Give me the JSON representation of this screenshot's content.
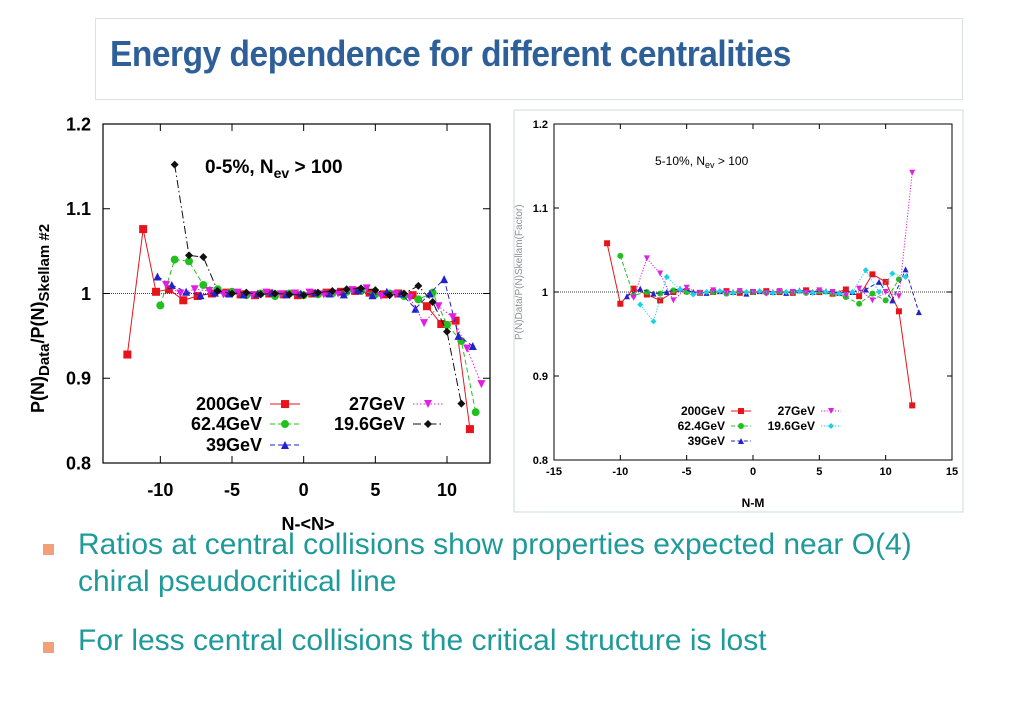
{
  "page": {
    "title": "Energy dependence for different centralities",
    "bullets": [
      "Ratios at central collisions show properties expected near O(4) chiral pseudocritical line",
      " For less central collisions the critical structure is lost"
    ],
    "bullet_color": "#f3a07a",
    "title_color": "#2e5f98",
    "text_color": "#1f9a9a"
  },
  "chart_data": [
    {
      "type": "line",
      "annotation": "0-5%, N_ev > 100",
      "xlabel": "N-<N>",
      "ylabel": "P(N)_Data/P(N)_Skellam #2",
      "xlim": [
        -14,
        13
      ],
      "ylim": [
        0.8,
        1.2
      ],
      "xticks": [
        -10,
        -5,
        0,
        5,
        10
      ],
      "yticks": [
        0.8,
        0.9,
        1,
        1.1,
        1.2
      ],
      "ytick_labels": [
        "0.8",
        "0.9",
        "1",
        "1.1",
        "1.2"
      ],
      "reference_line": 1.0,
      "legend_position": "bottom-center",
      "series": [
        {
          "name": "200GeV",
          "color": "#e8141c",
          "marker": "square",
          "dash": "solid",
          "x": [
            -12.3,
            -11.2,
            -10.3,
            -9.4,
            -8.4,
            -7.4,
            -6.4,
            -5.4,
            -4.4,
            -3.4,
            -2.4,
            -1.4,
            -0.4,
            0.6,
            1.6,
            2.6,
            3.6,
            4.6,
            5.6,
            6.6,
            7.6,
            8.6,
            9.6,
            10.6,
            11.6
          ],
          "y": [
            0.928,
            1.076,
            1.002,
            1.005,
            0.992,
            0.997,
            1.0,
            1.001,
            0.999,
            0.998,
            1.0,
            0.999,
            0.998,
            1.0,
            1.001,
            1.002,
            1.003,
            1.001,
            0.999,
            1.0,
            0.998,
            0.985,
            0.964,
            0.968,
            0.84
          ]
        },
        {
          "name": "62.4GeV",
          "color": "#22c01e",
          "marker": "circle",
          "dash": "dashed",
          "x": [
            -10.0,
            -9.0,
            -8.0,
            -7.0,
            -6.0,
            -5.0,
            -4.0,
            -3.0,
            -2.0,
            -1.0,
            0.0,
            1.0,
            2.0,
            3.0,
            4.0,
            5.0,
            6.0,
            7.0,
            8.0,
            9.0,
            10.0,
            11.0,
            12.0
          ],
          "y": [
            0.986,
            1.04,
            1.038,
            1.01,
            1.005,
            1.002,
            0.998,
            1.0,
            0.997,
            1.0,
            0.998,
            0.999,
            1.0,
            1.002,
            1.003,
            0.999,
            1.0,
            0.997,
            0.993,
            1.001,
            0.963,
            0.944,
            0.86
          ]
        },
        {
          "name": "39GeV",
          "color": "#2222cc",
          "marker": "triangle",
          "dash": "dashed",
          "x": [
            -10.2,
            -9.2,
            -8.2,
            -7.2,
            -6.2,
            -5.2,
            -4.2,
            -3.2,
            -2.2,
            -1.2,
            -0.2,
            0.8,
            1.8,
            2.8,
            3.8,
            4.8,
            5.8,
            6.8,
            7.8,
            8.8,
            9.8,
            10.8,
            11.8
          ],
          "y": [
            1.02,
            1.01,
            1.002,
            0.998,
            1.001,
            1.0,
            0.999,
            1.0,
            1.001,
            0.999,
            1.0,
            1.001,
            1.0,
            0.999,
            1.004,
            0.998,
            1.002,
            1.0,
            0.982,
            1.0,
            1.017,
            0.95,
            0.938
          ]
        },
        {
          "name": "27GeV",
          "color": "#e31ee3",
          "marker": "triangle-down",
          "dash": "dotted",
          "x": [
            -9.6,
            -8.6,
            -7.6,
            -6.6,
            -5.6,
            -4.6,
            -3.6,
            -2.6,
            -1.6,
            -0.6,
            0.4,
            1.4,
            2.4,
            3.4,
            4.4,
            5.4,
            6.4,
            7.4,
            8.4,
            9.4,
            10.4,
            11.4,
            12.4
          ],
          "y": [
            1.01,
            1.0,
            1.005,
            1.003,
            0.999,
            1.001,
            0.998,
            1.001,
            0.999,
            1.0,
            1.001,
            0.999,
            1.0,
            1.004,
            1.006,
            0.997,
            0.999,
            0.995,
            0.965,
            0.985,
            0.972,
            0.935,
            0.893
          ]
        },
        {
          "name": "19.6GeV",
          "color": "#111111",
          "marker": "diamond",
          "dash": "dashdot",
          "x": [
            -9.0,
            -8.0,
            -7.0,
            -6.0,
            -5.0,
            -4.0,
            -3.0,
            -2.0,
            -1.0,
            0.0,
            1.0,
            2.0,
            3.0,
            4.0,
            5.0,
            6.0,
            7.0,
            8.0,
            9.0,
            10.0,
            11.0
          ],
          "x_extra": [],
          "y": [
            1.152,
            1.045,
            1.043,
            1.003,
            1.0,
            1.001,
            0.999,
            1.0,
            0.999,
            0.998,
            1.001,
            1.003,
            1.005,
            1.006,
            1.004,
            0.998,
            1.0,
            1.009,
            0.99,
            0.955,
            0.87
          ]
        }
      ]
    },
    {
      "type": "line",
      "annotation": "5-10%, N_ev > 100",
      "xlabel": "N-M",
      "ylabel": "",
      "xlim": [
        -15,
        15
      ],
      "ylim": [
        0.8,
        1.2
      ],
      "xticks": [
        -15,
        -10,
        -5,
        0,
        5,
        10,
        15
      ],
      "yticks": [
        0.8,
        0.9,
        1,
        1.1,
        1.2
      ],
      "ytick_labels": [
        "0.8",
        "0.9",
        "1",
        "1.1",
        "1.2"
      ],
      "reference_line": 1.0,
      "legend_position": "bottom-center",
      "series": [
        {
          "name": "200GeV",
          "color": "#e8141c",
          "marker": "square",
          "dash": "solid",
          "x": [
            -11.0,
            -10.0,
            -9.0,
            -8.0,
            -7.0,
            -6.0,
            -5.0,
            -4.0,
            -3.0,
            -2.0,
            -1.0,
            0.0,
            1.0,
            2.0,
            3.0,
            4.0,
            5.0,
            6.0,
            7.0,
            8.0,
            9.0,
            10.0,
            11.0,
            12.0
          ],
          "y": [
            1.058,
            0.986,
            1.004,
            0.997,
            0.99,
            1.0,
            1.001,
            0.999,
            1.0,
            1.001,
            0.999,
            1.0,
            1.001,
            1.0,
            0.999,
            1.002,
            1.0,
            0.998,
            1.003,
            0.995,
            1.021,
            1.012,
            0.977,
            0.865
          ]
        },
        {
          "name": "62.4GeV",
          "color": "#22c01e",
          "marker": "circle",
          "dash": "dashed",
          "x": [
            -10.0,
            -9.0,
            -8.0,
            -7.0,
            -6.0,
            -5.0,
            -4.0,
            -3.0,
            -2.0,
            -1.0,
            0.0,
            1.0,
            2.0,
            3.0,
            4.0,
            5.0,
            6.0,
            7.0,
            8.0,
            9.0,
            10.0,
            11.0
          ],
          "y": [
            1.043,
            0.996,
            1.0,
            0.998,
            1.002,
            1.0,
            0.999,
            1.0,
            0.998,
            1.001,
            1.0,
            0.999,
            1.001,
            1.0,
            0.999,
            1.001,
            0.999,
            0.994,
            0.986,
            0.998,
            0.99,
            1.015
          ]
        },
        {
          "name": "39GeV",
          "color": "#2222cc",
          "marker": "triangle",
          "dash": "dashed",
          "x": [
            -9.5,
            -8.5,
            -7.5,
            -6.5,
            -5.5,
            -4.5,
            -3.5,
            -2.5,
            -1.5,
            -0.5,
            0.5,
            1.5,
            2.5,
            3.5,
            4.5,
            5.5,
            6.5,
            7.5,
            8.5,
            9.5,
            10.5,
            11.5,
            12.5
          ],
          "y": [
            0.995,
            1.004,
            0.998,
            1.0,
            1.004,
            1.0,
            0.999,
            1.001,
            1.0,
            0.998,
            1.001,
            1.0,
            0.999,
            1.002,
            1.0,
            1.001,
            0.999,
            1.0,
            1.003,
            1.012,
            0.99,
            1.027,
            0.976
          ]
        },
        {
          "name": "27GeV",
          "color": "#e31ee3",
          "marker": "triangle-down",
          "dash": "dotted",
          "x": [
            -9.0,
            -8.0,
            -7.0,
            -6.0,
            -5.0,
            -4.0,
            -3.0,
            -2.0,
            -1.0,
            0.0,
            1.0,
            2.0,
            3.0,
            4.0,
            5.0,
            6.0,
            7.0,
            8.0,
            9.0,
            10.0,
            11.0,
            12.0
          ],
          "y": [
            0.993,
            1.04,
            1.022,
            0.99,
            1.005,
            0.998,
            1.002,
            0.999,
            1.001,
            1.0,
            0.998,
            1.001,
            1.0,
            0.999,
            1.002,
            1.0,
            0.996,
            1.004,
            0.99,
            1.0,
            0.995,
            1.142
          ]
        },
        {
          "name": "19.6GeV",
          "color": "#19d3e0",
          "marker": "diamond",
          "dash": "dotted",
          "x": [
            -8.5,
            -7.5,
            -6.5,
            -5.5,
            -4.5,
            -3.5,
            -2.5,
            -1.5,
            -0.5,
            0.5,
            1.5,
            2.5,
            3.5,
            4.5,
            5.5,
            6.5,
            7.5,
            8.5,
            9.5,
            10.5,
            11.5
          ],
          "y": [
            0.985,
            0.965,
            1.018,
            1.003,
            0.997,
            1.0,
            1.001,
            0.999,
            1.0,
            1.001,
            0.999,
            1.0,
            1.001,
            0.999,
            1.0,
            0.998,
            1.0,
            1.026,
            1.0,
            1.022,
            1.018
          ]
        }
      ]
    }
  ],
  "labels": {
    "left_annotation_main": "0-5%, N",
    "left_annotation_sub": "ev",
    "left_annotation_rest": " > 100",
    "right_annotation_main": "5-10%, N",
    "right_annotation_sub": "ev",
    "right_annotation_rest": " > 100",
    "left_xlabel": "N-<N>",
    "right_xlabel": "N-M",
    "left_ylabel_parts": [
      "P(N)",
      "Data",
      "/P(N)",
      "Skellam #2"
    ],
    "right_ylabel_fragment": "P(N)Data/P(N)Skellam(Factor)"
  }
}
